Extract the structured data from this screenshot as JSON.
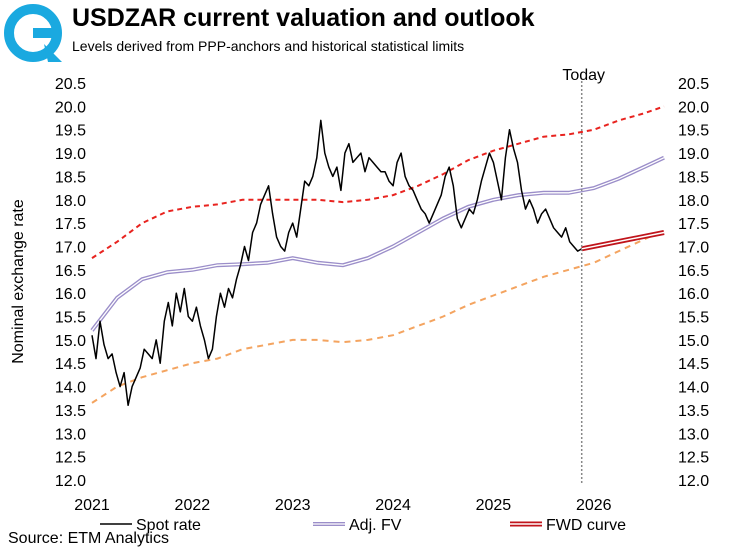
{
  "header": {
    "title": "USDZAR current valuation and outlook",
    "subtitle": "Levels derived from PPP-anchors and historical statistical limits"
  },
  "footer": {
    "source": "Source: ETM Analytics"
  },
  "logo": {
    "icon": "etm-logo-icon",
    "color": "#1aa9e0"
  },
  "chart_data": {
    "type": "line",
    "title": "USDZAR current valuation and outlook",
    "subtitle": "Levels derived from PPP-anchors and historical statistical limits",
    "ylabel": "Nominal exchange rate",
    "xlabel": "",
    "ylim": [
      12.0,
      20.5
    ],
    "xlim": [
      2021.0,
      2026.7
    ],
    "y_ticks": [
      "12.0",
      "12.5",
      "13.0",
      "13.5",
      "14.0",
      "14.5",
      "15.0",
      "15.5",
      "16.0",
      "16.5",
      "17.0",
      "17.5",
      "18.0",
      "18.5",
      "19.0",
      "19.5",
      "20.0",
      "20.5"
    ],
    "x_ticks": [
      "2021",
      "2022",
      "2023",
      "2024",
      "2025",
      "2026"
    ],
    "secondary_y_axis": true,
    "grid": false,
    "legend_position": "bottom",
    "annotations": [
      {
        "label": "Today",
        "x": 2025.88,
        "style": "dotted vertical line"
      }
    ],
    "colors": {
      "spot": "#000000",
      "fv": "#9b8ec9",
      "upper": "#e8231f",
      "lower": "#f4a460",
      "fwd": "#c0141b",
      "today": "#888888"
    },
    "series": [
      {
        "name": "Spot rate",
        "style": "solid",
        "x": [
          2021.0,
          2021.04,
          2021.08,
          2021.12,
          2021.16,
          2021.2,
          2021.24,
          2021.28,
          2021.32,
          2021.36,
          2021.4,
          2021.44,
          2021.48,
          2021.52,
          2021.56,
          2021.6,
          2021.64,
          2021.68,
          2021.72,
          2021.76,
          2021.8,
          2021.84,
          2021.88,
          2021.92,
          2021.96,
          2022.0,
          2022.04,
          2022.08,
          2022.12,
          2022.16,
          2022.2,
          2022.24,
          2022.28,
          2022.32,
          2022.36,
          2022.4,
          2022.44,
          2022.48,
          2022.52,
          2022.56,
          2022.6,
          2022.64,
          2022.68,
          2022.72,
          2022.76,
          2022.8,
          2022.84,
          2022.88,
          2022.92,
          2022.96,
          2023.0,
          2023.04,
          2023.08,
          2023.12,
          2023.16,
          2023.2,
          2023.24,
          2023.28,
          2023.32,
          2023.36,
          2023.4,
          2023.44,
          2023.48,
          2023.52,
          2023.56,
          2023.6,
          2023.64,
          2023.68,
          2023.72,
          2023.76,
          2023.8,
          2023.84,
          2023.88,
          2023.92,
          2023.96,
          2024.0,
          2024.04,
          2024.08,
          2024.12,
          2024.16,
          2024.2,
          2024.24,
          2024.28,
          2024.32,
          2024.36,
          2024.4,
          2024.44,
          2024.48,
          2024.52,
          2024.56,
          2024.6,
          2024.64,
          2024.68,
          2024.72,
          2024.76,
          2024.8,
          2024.84,
          2024.88,
          2024.92,
          2024.96,
          2025.0,
          2025.04,
          2025.08,
          2025.12,
          2025.16,
          2025.2,
          2025.24,
          2025.28,
          2025.32,
          2025.36,
          2025.4,
          2025.44,
          2025.48,
          2025.52,
          2025.56,
          2025.6,
          2025.64,
          2025.68,
          2025.72,
          2025.76,
          2025.8,
          2025.84,
          2025.88
        ],
        "y": [
          15.1,
          14.6,
          15.4,
          14.9,
          14.6,
          14.7,
          14.3,
          14.0,
          14.3,
          13.6,
          14.0,
          14.2,
          14.4,
          14.8,
          14.7,
          14.6,
          15.0,
          14.5,
          15.4,
          15.8,
          15.3,
          16.0,
          15.6,
          16.1,
          15.5,
          15.4,
          15.7,
          15.3,
          15.0,
          14.6,
          14.8,
          15.5,
          16.0,
          15.7,
          16.1,
          15.9,
          16.3,
          16.6,
          17.0,
          16.7,
          17.3,
          17.5,
          17.9,
          18.1,
          18.3,
          17.7,
          17.2,
          17.0,
          16.9,
          17.3,
          17.5,
          17.2,
          17.8,
          18.4,
          18.3,
          18.5,
          18.9,
          19.7,
          19.0,
          18.7,
          18.5,
          18.7,
          18.2,
          19.0,
          19.2,
          18.8,
          18.9,
          19.0,
          18.6,
          18.9,
          18.8,
          18.7,
          18.6,
          18.6,
          18.4,
          18.3,
          18.8,
          19.0,
          18.5,
          18.3,
          18.2,
          18.0,
          17.8,
          17.7,
          17.5,
          17.7,
          17.9,
          18.1,
          18.5,
          18.7,
          18.3,
          17.6,
          17.4,
          17.6,
          17.8,
          17.7,
          18.0,
          18.4,
          18.7,
          19.0,
          18.8,
          18.4,
          18.0,
          18.9,
          19.5,
          19.1,
          18.8,
          18.2,
          17.8,
          18.0,
          17.8,
          17.5,
          17.7,
          17.8,
          17.6,
          17.4,
          17.3,
          17.2,
          17.4,
          17.1,
          17.0,
          16.9,
          16.95
        ]
      },
      {
        "name": "Adj. FV",
        "style": "double line",
        "x": [
          2021.0,
          2021.25,
          2021.5,
          2021.75,
          2022.0,
          2022.25,
          2022.5,
          2022.75,
          2023.0,
          2023.25,
          2023.5,
          2023.75,
          2024.0,
          2024.25,
          2024.5,
          2024.75,
          2025.0,
          2025.25,
          2025.5,
          2025.75,
          2026.0,
          2026.25,
          2026.5,
          2026.7
        ],
        "y": [
          15.2,
          15.9,
          16.3,
          16.45,
          16.5,
          16.6,
          16.62,
          16.65,
          16.75,
          16.65,
          16.6,
          16.75,
          17.0,
          17.3,
          17.6,
          17.85,
          18.0,
          18.1,
          18.15,
          18.15,
          18.25,
          18.45,
          18.7,
          18.9
        ]
      },
      {
        "name": "Upper band",
        "style": "dashed",
        "legend": false,
        "x": [
          2021.0,
          2021.25,
          2021.5,
          2021.75,
          2022.0,
          2022.25,
          2022.5,
          2022.75,
          2023.0,
          2023.25,
          2023.5,
          2023.75,
          2024.0,
          2024.25,
          2024.5,
          2024.75,
          2025.0,
          2025.25,
          2025.5,
          2025.75,
          2026.0,
          2026.25,
          2026.5,
          2026.7
        ],
        "y": [
          16.75,
          17.1,
          17.5,
          17.75,
          17.85,
          17.9,
          18.0,
          18.0,
          18.0,
          18.0,
          17.95,
          18.0,
          18.1,
          18.3,
          18.55,
          18.85,
          19.05,
          19.2,
          19.35,
          19.4,
          19.5,
          19.7,
          19.85,
          20.0
        ]
      },
      {
        "name": "Lower band",
        "style": "dashed",
        "legend": false,
        "x": [
          2021.0,
          2021.25,
          2021.5,
          2021.75,
          2022.0,
          2022.25,
          2022.5,
          2022.75,
          2023.0,
          2023.25,
          2023.5,
          2023.75,
          2024.0,
          2024.25,
          2024.5,
          2024.75,
          2025.0,
          2025.25,
          2025.5,
          2025.75,
          2026.0,
          2026.25,
          2026.5,
          2026.7
        ],
        "y": [
          13.65,
          14.0,
          14.2,
          14.35,
          14.5,
          14.6,
          14.8,
          14.9,
          15.0,
          15.0,
          14.95,
          15.0,
          15.1,
          15.3,
          15.5,
          15.75,
          15.95,
          16.15,
          16.35,
          16.5,
          16.65,
          16.9,
          17.15,
          17.35
        ]
      },
      {
        "name": "FWD curve",
        "style": "double line",
        "x": [
          2025.88,
          2026.7
        ],
        "y": [
          16.95,
          17.3
        ]
      }
    ]
  }
}
